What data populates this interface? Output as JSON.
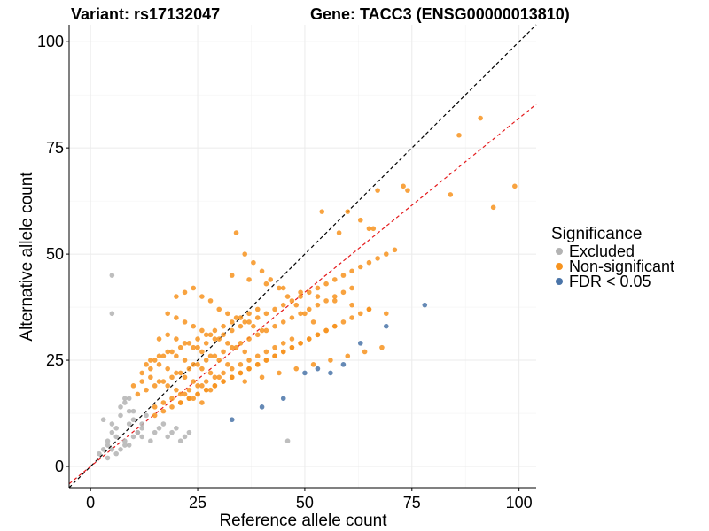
{
  "chart_data": {
    "type": "scatter",
    "title_left": "Variant: rs17132047",
    "title_right": "Gene: TACC3 (ENSG00000013810)",
    "xlabel": "Reference allele count",
    "ylabel": "Alternative allele count",
    "xlim": [
      -5,
      104
    ],
    "ylim": [
      -5,
      104
    ],
    "x_ticks": [
      0,
      25,
      50,
      75,
      100
    ],
    "y_ticks": [
      0,
      25,
      50,
      75,
      100
    ],
    "grid": true,
    "legend": {
      "title": "Significance",
      "position": "right",
      "entries": [
        {
          "label": "Excluded",
          "color": "#b3b3b3"
        },
        {
          "label": "Non-significant",
          "color": "#f7931e"
        },
        {
          "label": "FDR < 0.05",
          "color": "#4a74a8"
        }
      ]
    },
    "reference_lines": [
      {
        "name": "identity",
        "slope": 1.0,
        "intercept": 0,
        "color": "#000000",
        "style": "dashed"
      },
      {
        "name": "fit",
        "slope": 0.82,
        "intercept": 0,
        "color": "#e41a1c",
        "style": "dashed"
      }
    ],
    "series": [
      {
        "name": "Excluded",
        "color": "#b3b3b3",
        "x": [
          5,
          5,
          2,
          3,
          4,
          4,
          5,
          6,
          7,
          7,
          8,
          8,
          9,
          9,
          10,
          11,
          12,
          12,
          14,
          15,
          16,
          17,
          18,
          19,
          20,
          21,
          22,
          23,
          3,
          5,
          6,
          8,
          9,
          10,
          11,
          12,
          13,
          46,
          9,
          10,
          7,
          6,
          5,
          4,
          8
        ],
        "y": [
          45,
          36,
          3,
          4,
          5,
          6,
          8,
          9,
          12,
          14,
          15,
          16,
          10,
          13,
          11,
          8,
          7,
          9,
          6,
          8,
          9,
          10,
          7,
          8,
          9,
          6,
          7,
          8,
          11,
          10,
          7,
          6,
          5,
          7,
          8,
          10,
          12,
          6,
          16,
          13,
          4,
          3,
          4,
          2,
          5
        ]
      },
      {
        "name": "Non-significant",
        "color": "#f7931e",
        "x": [
          91,
          86,
          99,
          94,
          84,
          73,
          74,
          67,
          60,
          54,
          66,
          58,
          63,
          65,
          34,
          36,
          38,
          40,
          42,
          44,
          46,
          48,
          50,
          52,
          20,
          22,
          24,
          26,
          28,
          30,
          32,
          34,
          36,
          38,
          40,
          18,
          20,
          22,
          24,
          26,
          28,
          30,
          32,
          34,
          36,
          16,
          18,
          20,
          22,
          24,
          26,
          28,
          30,
          32,
          14,
          16,
          18,
          20,
          22,
          24,
          26,
          28,
          30,
          12,
          14,
          16,
          18,
          20,
          22,
          24,
          26,
          28,
          10,
          12,
          14,
          16,
          18,
          20,
          22,
          24,
          26,
          11,
          13,
          15,
          17,
          19,
          21,
          23,
          25,
          27,
          29,
          31,
          33,
          35,
          37,
          39,
          41,
          43,
          45,
          47,
          49,
          51,
          53,
          55,
          57,
          59,
          61,
          21,
          23,
          25,
          27,
          29,
          31,
          33,
          35,
          37,
          39,
          41,
          43,
          45,
          47,
          49,
          51,
          53,
          55,
          57,
          15,
          17,
          19,
          21,
          23,
          25,
          27,
          29,
          31,
          33,
          35,
          37,
          39,
          41,
          43,
          45,
          47,
          25,
          27,
          29,
          31,
          33,
          35,
          37,
          39,
          41,
          43,
          45,
          47,
          49,
          51,
          53,
          55,
          57,
          59,
          61,
          63,
          65,
          67,
          69,
          71,
          13,
          15,
          17,
          19,
          21,
          23,
          25,
          27,
          29,
          31,
          33,
          35,
          37,
          39,
          15,
          17,
          19,
          21,
          23,
          25,
          27,
          29,
          31,
          33,
          35,
          37,
          39,
          41,
          43,
          45,
          47,
          49,
          51,
          53,
          55,
          57,
          59,
          61,
          63,
          65,
          33,
          37,
          41,
          45,
          49,
          53,
          57,
          61,
          65,
          69,
          36,
          40,
          44,
          48,
          52,
          56,
          60,
          64,
          68
        ],
        "y": [
          82,
          78,
          66,
          61,
          64,
          66,
          65,
          65,
          60,
          60,
          56,
          55,
          58,
          56,
          55,
          50,
          48,
          46,
          44,
          42,
          40,
          38,
          36,
          34,
          40,
          41,
          42,
          40,
          39,
          37,
          36,
          35,
          34,
          33,
          32,
          36,
          35,
          34,
          33,
          32,
          31,
          30,
          29,
          28,
          27,
          30,
          31,
          30,
          29,
          28,
          27,
          26,
          25,
          24,
          25,
          26,
          27,
          26,
          25,
          24,
          23,
          22,
          21,
          22,
          23,
          24,
          23,
          22,
          21,
          20,
          19,
          18,
          19,
          20,
          21,
          20,
          19,
          18,
          17,
          16,
          15,
          17,
          18,
          19,
          20,
          21,
          22,
          23,
          24,
          25,
          26,
          27,
          28,
          29,
          30,
          31,
          32,
          33,
          34,
          35,
          36,
          37,
          38,
          39,
          40,
          41,
          42,
          15,
          16,
          17,
          18,
          19,
          20,
          21,
          22,
          23,
          24,
          25,
          26,
          27,
          28,
          29,
          30,
          31,
          32,
          33,
          14,
          15,
          16,
          17,
          18,
          19,
          20,
          21,
          22,
          23,
          24,
          25,
          26,
          27,
          28,
          29,
          30,
          28,
          29,
          30,
          31,
          32,
          33,
          34,
          35,
          36,
          37,
          38,
          39,
          40,
          41,
          42,
          43,
          44,
          45,
          46,
          47,
          48,
          49,
          50,
          51,
          24,
          25,
          26,
          27,
          28,
          29,
          30,
          31,
          32,
          33,
          34,
          35,
          36,
          37,
          12,
          13,
          14,
          15,
          16,
          17,
          18,
          19,
          20,
          21,
          22,
          23,
          24,
          25,
          26,
          27,
          28,
          29,
          30,
          31,
          32,
          33,
          34,
          35,
          36,
          37,
          45,
          44,
          43,
          42,
          41,
          40,
          39,
          38,
          37,
          36,
          20,
          21,
          22,
          23,
          24,
          25,
          26,
          27,
          28
        ]
      },
      {
        "name": "FDR < 0.05",
        "color": "#4a74a8",
        "x": [
          78,
          69,
          63,
          59,
          56,
          53,
          50,
          45,
          40,
          33
        ],
        "y": [
          38,
          33,
          29,
          24,
          22,
          23,
          22,
          16,
          14,
          11
        ]
      }
    ]
  }
}
